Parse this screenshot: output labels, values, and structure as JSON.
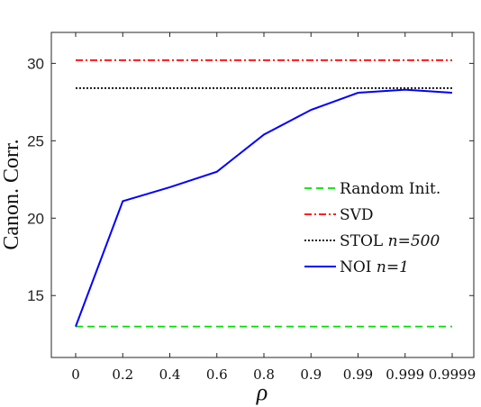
{
  "chart_data": {
    "type": "line",
    "title": "",
    "xlabel": "ρ",
    "ylabel": "Canon. Corr.",
    "categories": [
      "0",
      "0.2",
      "0.4",
      "0.6",
      "0.8",
      "0.9",
      "0.99",
      "0.999",
      "0.9999"
    ],
    "ylim": [
      11,
      32
    ],
    "yticks": [
      15,
      20,
      25,
      30
    ],
    "grid": false,
    "legend_position": "center-right",
    "series": [
      {
        "name": "Random Init.",
        "color": "#00e000",
        "dash": "dashed",
        "values": [
          13,
          13,
          13,
          13,
          13,
          13,
          13,
          13,
          13
        ]
      },
      {
        "name": "SVD",
        "color": "#ff0000",
        "dash": "dashdot",
        "values": [
          30.2,
          30.2,
          30.2,
          30.2,
          30.2,
          30.2,
          30.2,
          30.2,
          30.2
        ]
      },
      {
        "name": "STOL",
        "name_math": "n=500",
        "color": "#000000",
        "dash": "dotted",
        "values": [
          28.4,
          28.4,
          28.4,
          28.4,
          28.4,
          28.4,
          28.4,
          28.4,
          28.4
        ]
      },
      {
        "name": "NOI",
        "name_math": "n=1",
        "color": "#0000ff",
        "dash": "solid",
        "values": [
          13,
          21.1,
          22.0,
          23.0,
          25.4,
          27.0,
          28.1,
          28.3,
          28.1
        ]
      }
    ]
  }
}
